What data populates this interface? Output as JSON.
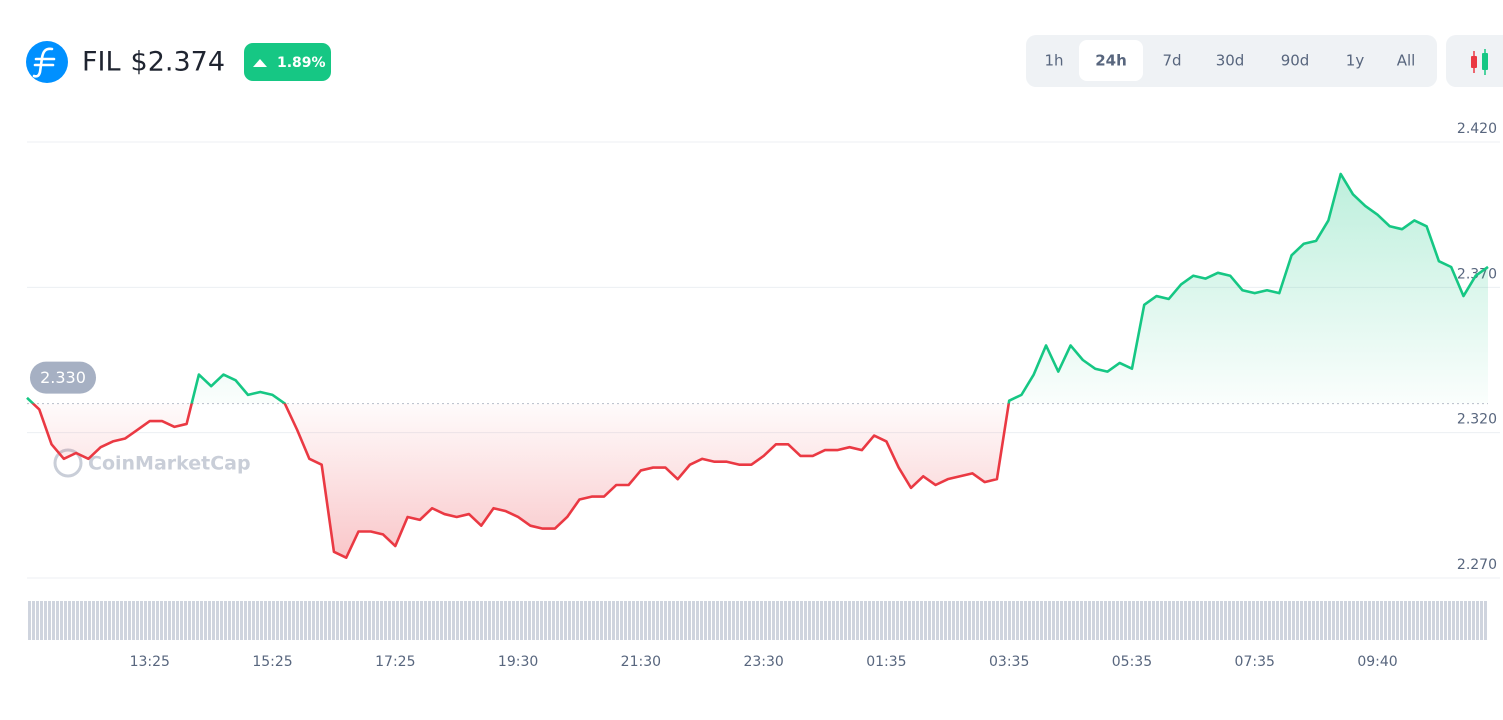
{
  "header": {
    "symbol": "FIL",
    "price": "$2.374",
    "change": "1.89%"
  },
  "time_ranges": [
    "1h",
    "24h",
    "7d",
    "30d",
    "90d",
    "1y",
    "All"
  ],
  "selected_range": 1,
  "watermark": "CoinMarketCap",
  "chart_data": {
    "type": "line",
    "categories": [
      null,
      null,
      null,
      null,
      null,
      null,
      null,
      null,
      null,
      null,
      "13:25",
      null,
      null,
      null,
      null,
      null,
      null,
      null,
      null,
      null,
      "15:25",
      null,
      null,
      null,
      null,
      null,
      null,
      null,
      null,
      null,
      "17:25",
      null,
      null,
      null,
      null,
      null,
      null,
      null,
      null,
      null,
      "19:30",
      null,
      null,
      null,
      null,
      null,
      null,
      null,
      null,
      null,
      "21:30",
      null,
      null,
      null,
      null,
      null,
      null,
      null,
      null,
      null,
      "23:30",
      null,
      null,
      null,
      null,
      null,
      null,
      null,
      null,
      null,
      "01:35",
      null,
      null,
      null,
      null,
      null,
      null,
      null,
      null,
      null,
      "03:35",
      null,
      null,
      null,
      null,
      null,
      null,
      null,
      null,
      null,
      "05:35",
      null,
      null,
      null,
      null,
      null,
      null,
      null,
      null,
      null,
      "07:35",
      null,
      null,
      null,
      null,
      null,
      null,
      null,
      null,
      null,
      "09:40",
      null,
      null,
      null,
      null,
      null,
      null,
      null,
      null,
      null
    ],
    "values": [
      2.332,
      2.328,
      2.316,
      2.311,
      2.313,
      2.311,
      2.315,
      2.317,
      2.318,
      2.321,
      2.324,
      2.324,
      2.322,
      2.323,
      2.34,
      2.336,
      2.34,
      2.338,
      2.333,
      2.334,
      2.333,
      2.33,
      2.321,
      2.311,
      2.309,
      2.279,
      2.277,
      2.286,
      2.286,
      2.285,
      2.281,
      2.291,
      2.29,
      2.294,
      2.292,
      2.291,
      2.292,
      2.288,
      2.294,
      2.293,
      2.291,
      2.288,
      2.287,
      2.287,
      2.291,
      2.297,
      2.298,
      2.298,
      2.302,
      2.302,
      2.307,
      2.308,
      2.308,
      2.304,
      2.309,
      2.311,
      2.31,
      2.31,
      2.309,
      2.309,
      2.312,
      2.316,
      2.316,
      2.312,
      2.312,
      2.314,
      2.314,
      2.315,
      2.314,
      2.319,
      2.317,
      2.308,
      2.301,
      2.305,
      2.302,
      2.304,
      2.305,
      2.306,
      2.303,
      2.304,
      2.331,
      2.333,
      2.34,
      2.35,
      2.341,
      2.35,
      2.345,
      2.342,
      2.341,
      2.344,
      2.342,
      2.364,
      2.367,
      2.366,
      2.371,
      2.374,
      2.373,
      2.375,
      2.374,
      2.369,
      2.368,
      2.369,
      2.368,
      2.381,
      2.385,
      2.386,
      2.393,
      2.409,
      2.402,
      2.398,
      2.395,
      2.391,
      2.39,
      2.393,
      2.391,
      2.379,
      2.377,
      2.367,
      2.374,
      2.377
    ],
    "ylim": [
      2.27,
      2.42
    ],
    "yticks": [
      {
        "value": 2.42,
        "label": "2.420"
      },
      {
        "value": 2.37,
        "label": "2.370"
      },
      {
        "value": 2.32,
        "label": "2.320"
      },
      {
        "value": 2.27,
        "label": "2.270"
      }
    ],
    "baseline": {
      "value": 2.33,
      "label": "2.330"
    },
    "up_color": "#16c784",
    "down_color": "#ea3943",
    "grid": true
  }
}
